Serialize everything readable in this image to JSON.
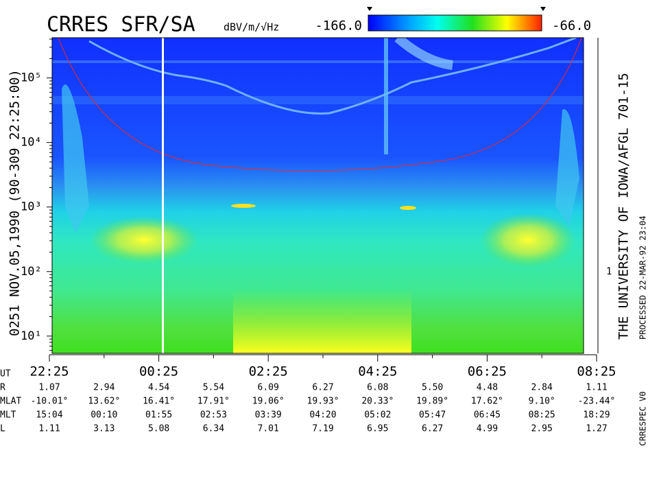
{
  "chart_data": {
    "type": "spectrogram",
    "title": "CRRES SFR/SA",
    "left_label": "0251  NOV.05,1990  (90-309 22:25:00)",
    "right_title": "THE UNIVERSITY OF IOWA/AFGL 701-15",
    "processed": "PROCESSED 22-MAR-92  23:04",
    "software": "CRRESPEC V0",
    "colorbar": {
      "units": "dBV/m/√Hz",
      "clim": [
        {
          "value": -166,
          "label": "-166.0"
        },
        {
          "value": -66,
          "label": "-66.0"
        }
      ]
    },
    "log_y": true,
    "ylim": [
      5.4,
      420000
    ],
    "yticks": [
      {
        "value": 10,
        "label": "10¹"
      },
      {
        "value": 100,
        "label": "10²"
      },
      {
        "value": 1000,
        "label": "10³"
      },
      {
        "value": 10000,
        "label": "10⁴"
      },
      {
        "value": 100000,
        "label": "10⁵"
      }
    ],
    "right_axis_label": "1",
    "categories": [
      "22:25",
      "00:25",
      "02:25",
      "04:25",
      "06:25",
      "08:25"
    ],
    "ephemeris": [
      {
        "name": "UT",
        "values": []
      },
      {
        "name": "R",
        "values": [
          "1.07",
          "2.94",
          "4.54",
          "5.54",
          "6.09",
          "6.27",
          "6.08",
          "5.50",
          "4.48",
          "2.84",
          "1.11"
        ]
      },
      {
        "name": "MLAT",
        "values": [
          "-10.01°",
          "13.62°",
          "16.41°",
          "17.91°",
          "19.06°",
          "19.93°",
          "20.33°",
          "19.89°",
          "17.62°",
          "9.10°",
          "-23.44°"
        ]
      },
      {
        "name": "MLT",
        "values": [
          "15:04",
          "00:10",
          "01:55",
          "02:53",
          "03:39",
          "04:20",
          "05:02",
          "05:47",
          "06:45",
          "08:25",
          "18:29"
        ]
      },
      {
        "name": "L",
        "values": [
          "1.11",
          "3.13",
          "5.08",
          "6.34",
          "7.01",
          "7.19",
          "6.95",
          "6.27",
          "4.99",
          "2.95",
          "1.27"
        ]
      }
    ]
  }
}
